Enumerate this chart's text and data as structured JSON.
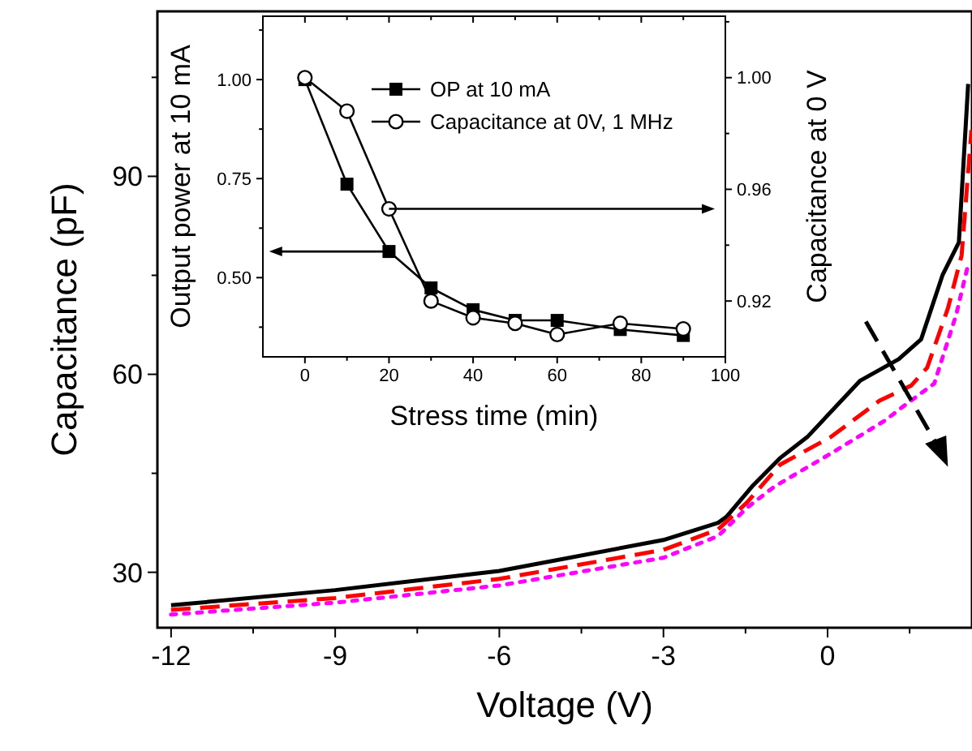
{
  "chart_data": [
    {
      "type": "line",
      "xlabel": "Voltage (V)",
      "ylabel": "Capacitance (pF)",
      "xlim": [
        -12.25,
        2.64
      ],
      "ylim": [
        21.6,
        115
      ],
      "xticks": [
        -12,
        {
          "value": -10.5,
          "label": null
        },
        -9,
        {
          "value": -7.5,
          "label": null
        },
        -6,
        {
          "value": -4.5,
          "label": null
        },
        -3,
        {
          "value": -1.5,
          "label": null
        },
        0,
        {
          "value": 1.5,
          "label": null
        }
      ],
      "yticks": [
        30,
        {
          "value": 45,
          "label": null
        },
        60,
        {
          "value": 75,
          "label": null
        },
        90,
        {
          "value": 105,
          "label": null
        }
      ],
      "grid": false,
      "legend": false,
      "marker": "none",
      "series": [
        {
          "color": "#000000",
          "line_style": "solid",
          "x": [
            -12,
            -9,
            -6,
            -3,
            -2,
            -1.85,
            -1.38,
            -0.87,
            -0.37,
            0.59,
            1.3,
            1.71,
            2.1,
            2.4,
            2.57
          ],
          "values": [
            25,
            27.3,
            30.2,
            34.9,
            37.5,
            38.4,
            43,
            47.3,
            50.5,
            59,
            62.3,
            65.3,
            75,
            80,
            104
          ]
        },
        {
          "color": "#ff0000",
          "line_style": "dashed",
          "x": [
            -12,
            -9,
            -6,
            -3,
            -2,
            -1.47,
            -0.87,
            0.06,
            0.95,
            1.53,
            1.82,
            2.2,
            2.45,
            2.63
          ],
          "values": [
            24.3,
            26.1,
            29,
            33.4,
            36.5,
            40.6,
            46.3,
            50.5,
            56,
            58.3,
            61,
            70,
            78,
            97
          ]
        },
        {
          "color": "#ff00ff",
          "line_style": "dotted",
          "x": [
            -12,
            -9,
            -6,
            -3,
            -2,
            -1.47,
            -0.97,
            0.06,
            1.05,
            1.44,
            1.95,
            2.35,
            2.58
          ],
          "values": [
            23.6,
            25.4,
            28,
            32.2,
            35.5,
            39.8,
            43,
            48,
            53,
            55.5,
            58.6,
            69,
            77
          ]
        }
      ]
    },
    {
      "type": "line",
      "xlabel": "Stress time (min)",
      "ylabel": "Output power at 10 mA",
      "y2label": "Capacitance at 0 V",
      "xlim": [
        -10,
        100
      ],
      "ylim": [
        0.3,
        1.16
      ],
      "y2lim": [
        0.9,
        1.022
      ],
      "xticks": [
        0,
        {
          "value": 10,
          "label": null
        },
        20,
        {
          "value": 30,
          "label": null
        },
        40,
        {
          "value": 50,
          "label": null
        },
        60,
        {
          "value": 70,
          "label": null
        },
        80,
        {
          "value": 90,
          "label": null
        },
        100
      ],
      "yticks": [
        {
          "value": 0.375,
          "label": null
        },
        {
          "value": 0.5,
          "label": "0.50"
        },
        {
          "value": 0.625,
          "label": null
        },
        {
          "value": 0.75,
          "label": "0.75"
        },
        {
          "value": 0.875,
          "label": null
        },
        {
          "value": 1,
          "label": "1.00"
        },
        {
          "value": 1.125,
          "label": null
        }
      ],
      "y2ticks": [
        {
          "value": 0.92,
          "label": "0.92"
        },
        {
          "value": 0.94,
          "label": null
        },
        {
          "value": 0.96,
          "label": "0.96"
        },
        {
          "value": 0.98,
          "label": null
        },
        {
          "value": 1,
          "label": "1.00"
        },
        {
          "value": 1.02,
          "label": null
        }
      ],
      "grid": false,
      "legend": "top right",
      "line_style": "solid",
      "series": [
        {
          "name": "OP at 10 mA",
          "color": "#000000",
          "marker": "square",
          "x": [
            0,
            10,
            20,
            30,
            40,
            50,
            60,
            75,
            90
          ],
          "values": [
            1,
            0.736,
            0.566,
            0.474,
            0.419,
            0.392,
            0.392,
            0.369,
            0.354
          ]
        },
        {
          "name": "Capacitance at 0V, 1 MHz",
          "color": "#000000",
          "marker": "circle",
          "axis": "y2",
          "x": [
            0,
            10,
            20,
            30,
            40,
            50,
            60,
            75,
            90
          ],
          "values": [
            1,
            0.988,
            0.953,
            0.92,
            0.914,
            0.912,
            0.908,
            0.912,
            0.91
          ]
        }
      ]
    }
  ]
}
